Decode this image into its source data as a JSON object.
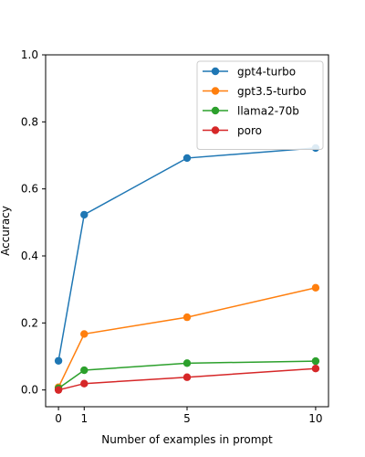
{
  "chart_data": {
    "type": "line",
    "title": "",
    "xlabel": "Number of examples in prompt",
    "ylabel": "Accuracy",
    "x": [
      0,
      1,
      5,
      10
    ],
    "xticks": [
      "0",
      "1",
      "5",
      "10"
    ],
    "yticks": [
      "0.0",
      "0.2",
      "0.4",
      "0.6",
      "0.8",
      "1.0"
    ],
    "xlim": [
      -0.5,
      10.5
    ],
    "ylim": [
      -0.05,
      1.0
    ],
    "grid": false,
    "legend": "top-right",
    "series": [
      {
        "name": "gpt4-turbo",
        "color": "#1f77b4",
        "values": [
          0.087,
          0.523,
          0.692,
          0.722
        ]
      },
      {
        "name": "gpt3.5-turbo",
        "color": "#ff7f0e",
        "values": [
          0.008,
          0.167,
          0.217,
          0.305
        ]
      },
      {
        "name": "llama2-70b",
        "color": "#2ca02c",
        "values": [
          0.005,
          0.059,
          0.08,
          0.086
        ]
      },
      {
        "name": "poro",
        "color": "#d62728",
        "values": [
          0.0,
          0.019,
          0.038,
          0.064
        ]
      }
    ]
  }
}
